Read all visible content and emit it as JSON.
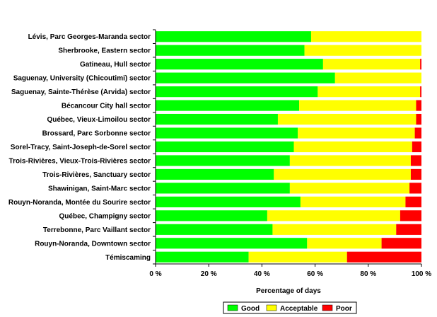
{
  "chart_data": {
    "type": "bar",
    "orientation": "horizontal",
    "stacked": true,
    "categories": [
      "Lévis, Parc Georges-Maranda sector",
      "Sherbrooke, Eastern sector",
      "Gatineau, Hull sector",
      "Saguenay, University (Chicoutimi) sector",
      "Saguenay, Sainte-Thérèse (Arvida) sector",
      "Bécancour City hall sector",
      "Québec, Vieux-Limoilou sector",
      "Brossard, Parc Sorbonne sector",
      "Sorel-Tracy, Saint-Joseph-de-Sorel sector",
      "Trois-Rivières, Vieux-Trois-Rivières sector",
      "Trois-Rivières, Sanctuary sector",
      "Shawinigan, Saint-Marc sector",
      "Rouyn-Noranda, Montée du Sourire sector",
      "Québec, Champigny sector",
      "Terrebonne, Parc Vaillant sector",
      "Rouyn-Noranda,  Downtown sector",
      "Témiscaming"
    ],
    "series": [
      {
        "name": "Good",
        "color": "#00ff00",
        "values": [
          58.5,
          56,
          63,
          67.5,
          61,
          54,
          46,
          53.5,
          52,
          50.5,
          44.5,
          50.5,
          54.5,
          42,
          44,
          57,
          35
        ]
      },
      {
        "name": "Acceptable",
        "color": "#ffff00",
        "values": [
          41.5,
          44,
          36.5,
          32.5,
          38.5,
          44,
          52,
          44,
          44.5,
          45.5,
          51.5,
          45,
          39.5,
          50,
          46.5,
          28,
          37
        ]
      },
      {
        "name": "Poor",
        "color": "#ff0000",
        "values": [
          0,
          0,
          0.5,
          0,
          0.5,
          2,
          2,
          2.5,
          3.5,
          4,
          4,
          4.5,
          6,
          8,
          9.5,
          15,
          28
        ]
      }
    ],
    "xlabel": "Percentage of days",
    "xlim": [
      0,
      100
    ],
    "xticks": [
      "0 %",
      "20 %",
      "40 %",
      "60 %",
      "80 %",
      "100 %"
    ],
    "legend_position": "bottom",
    "grid": false
  }
}
